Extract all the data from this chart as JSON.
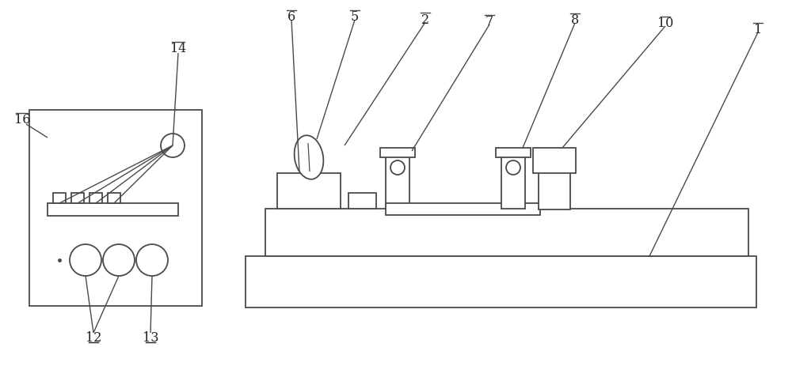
{
  "bg_color": "#ffffff",
  "line_color": "#4a4a4a",
  "line_width": 1.3,
  "label_color": "#222222",
  "label_fontsize": 11.5,
  "fig_w": 10.0,
  "fig_h": 4.64,
  "dpi": 100
}
